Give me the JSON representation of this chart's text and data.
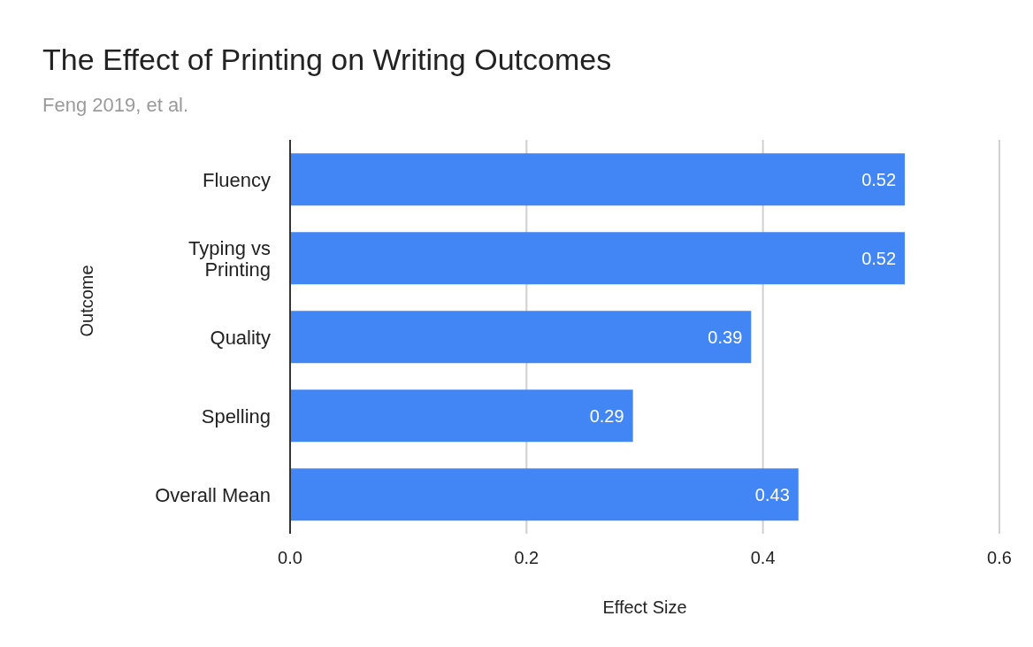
{
  "chart_data": {
    "type": "bar",
    "orientation": "horizontal",
    "title": "The Effect of Printing on Writing Outcomes",
    "subtitle": "Feng 2019, et al.",
    "xlabel": "Effect Size",
    "ylabel": "Outcome",
    "categories": [
      "Fluency",
      "Typing vs Printing",
      "Quality",
      "Spelling",
      "Overall Mean"
    ],
    "values": [
      0.52,
      0.52,
      0.39,
      0.29,
      0.43
    ],
    "color": "#4285f4",
    "xlim": [
      0,
      0.6
    ],
    "xticks": [
      {
        "value": 0,
        "label": "0.0"
      },
      0.2,
      0.4,
      0.6
    ],
    "grid": "x",
    "data_labels": true
  }
}
